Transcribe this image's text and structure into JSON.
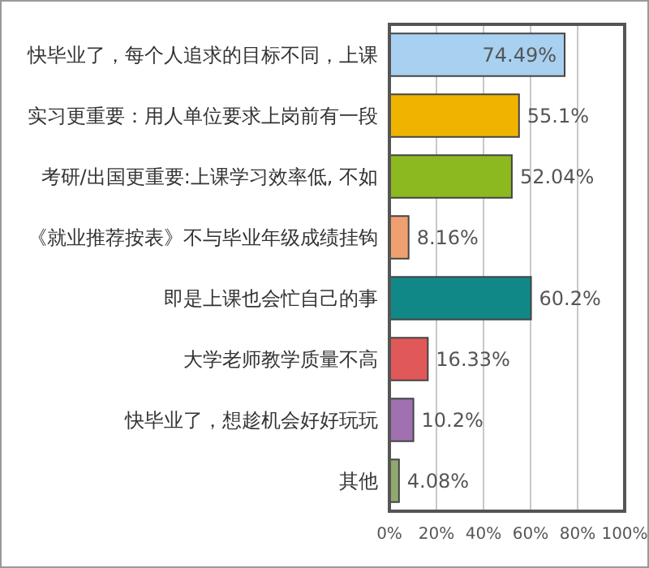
{
  "chart_data": {
    "type": "bar",
    "orientation": "horizontal",
    "categories": [
      "快毕业了，每个人追求的目标不同，上课",
      "实习更重要：用人单位要求上岗前有一段",
      "考研/出国更重要:上课学习效率低, 不如",
      "《就业推荐按表》不与毕业年级成绩挂钩",
      "即是上课也会忙自己的事",
      "大学老师教学质量不高",
      "快毕业了，想趁机会好好玩玩",
      "其他"
    ],
    "values": [
      74.49,
      55.1,
      52.04,
      8.16,
      60.2,
      16.33,
      10.2,
      4.08
    ],
    "value_labels": [
      "74.49%",
      "55.1%",
      "52.04%",
      "8.16%",
      "60.2%",
      "16.33%",
      "10.2%",
      "4.08%"
    ],
    "colors": [
      "#a8d0f0",
      "#f0b400",
      "#8cb820",
      "#f0a070",
      "#108888",
      "#e05858",
      "#a070b0",
      "#90a870"
    ],
    "xlim": [
      0,
      100
    ],
    "xticks": [
      {
        "value": 0,
        "label": "0%"
      },
      {
        "value": 20,
        "label": "20%"
      },
      {
        "value": 40,
        "label": "40%"
      },
      {
        "value": 60,
        "label": "60%"
      },
      {
        "value": 80,
        "label": "80%"
      },
      {
        "value": 100,
        "label": "100%"
      }
    ],
    "grid": "x"
  }
}
